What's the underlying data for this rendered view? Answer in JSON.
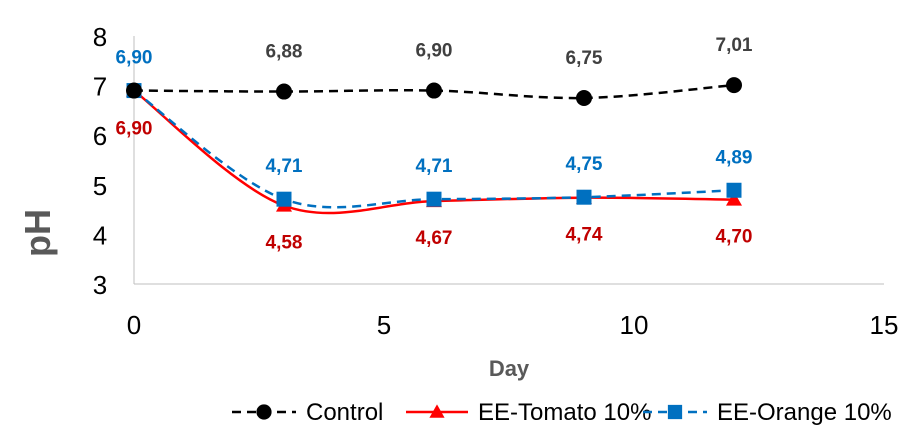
{
  "chart_data": {
    "type": "line",
    "xlabel": "Day",
    "ylabel": "pH",
    "xlim": [
      0,
      15
    ],
    "ylim": [
      3,
      8
    ],
    "xticks": [
      "0",
      "5",
      "10",
      "15"
    ],
    "yticks": [
      "3",
      "4",
      "5",
      "6",
      "7",
      "8"
    ],
    "grid": false,
    "legend_position": "bottom",
    "series": [
      {
        "name": "Control",
        "x": [
          0,
          3,
          6,
          9,
          12
        ],
        "y": [
          6.9,
          6.88,
          6.9,
          6.75,
          7.01
        ],
        "labels": [
          "",
          "6,88",
          "6,90",
          "6,75",
          "7,01"
        ],
        "color": "#000000",
        "marker": "circle",
        "dash": "dashed"
      },
      {
        "name": "EE-Tomato 10%",
        "x": [
          0,
          3,
          6,
          9,
          12
        ],
        "y": [
          6.9,
          4.58,
          4.67,
          4.74,
          4.7
        ],
        "labels": [
          "6,90",
          "4,58",
          "4,67",
          "4,74",
          "4,70"
        ],
        "color": "#ff0000",
        "label_color": "#c00000",
        "marker": "triangle",
        "dash": "solid"
      },
      {
        "name": "EE-Orange 10%",
        "x": [
          0,
          3,
          6,
          9,
          12
        ],
        "y": [
          6.9,
          4.71,
          4.71,
          4.75,
          4.89
        ],
        "labels": [
          "6,90",
          "4,71",
          "4,71",
          "4,75",
          "4,89"
        ],
        "color": "#0070c0",
        "label_color": "#0070c0",
        "marker": "square",
        "dash": "dashed"
      }
    ]
  }
}
